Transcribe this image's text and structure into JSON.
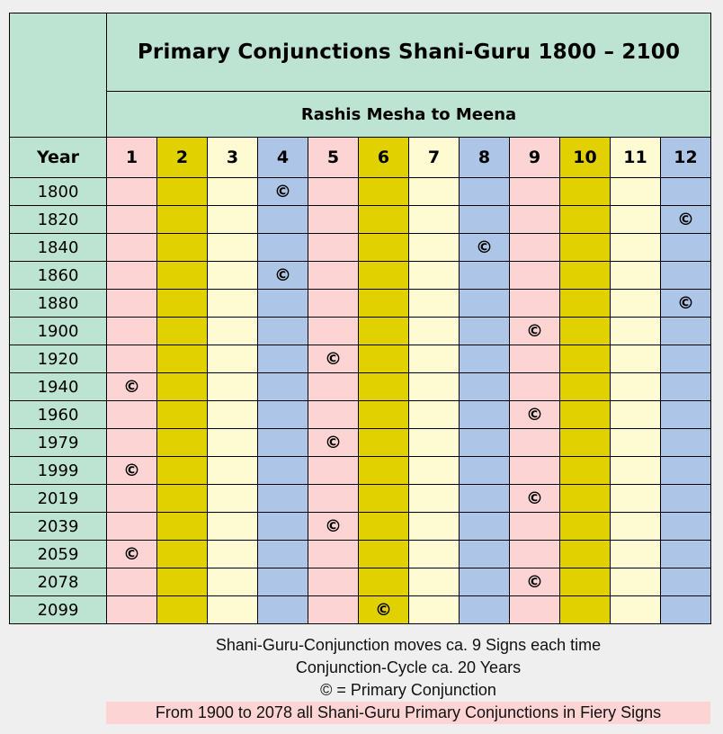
{
  "table": {
    "title": "Primary Conjunctions Shani-Guru 1800 – 2100",
    "subtitle": "Rashis Mesha to Meena",
    "year_header": "Year",
    "sign_headers": [
      "1",
      "2",
      "3",
      "4",
      "5",
      "6",
      "7",
      "8",
      "9",
      "10",
      "11",
      "12"
    ],
    "column_colors": [
      "#fcd4d3",
      "#e2d100",
      "#fefad1",
      "#adc6e7",
      "#fcd4d3",
      "#e2d100",
      "#fefad1",
      "#adc6e7",
      "#fcd4d3",
      "#e2d100",
      "#fefad1",
      "#adc6e7"
    ],
    "header_bg": "#bde3d3",
    "marker_symbol": "©",
    "rows": [
      {
        "year": "1800",
        "sign": 4
      },
      {
        "year": "1820",
        "sign": 12
      },
      {
        "year": "1840",
        "sign": 8
      },
      {
        "year": "1860",
        "sign": 4
      },
      {
        "year": "1880",
        "sign": 12
      },
      {
        "year": "1900",
        "sign": 9
      },
      {
        "year": "1920",
        "sign": 5
      },
      {
        "year": "1940",
        "sign": 1
      },
      {
        "year": "1960",
        "sign": 9
      },
      {
        "year": "1979",
        "sign": 5
      },
      {
        "year": "1999",
        "sign": 1
      },
      {
        "year": "2019",
        "sign": 9
      },
      {
        "year": "2039",
        "sign": 5
      },
      {
        "year": "2059",
        "sign": 1
      },
      {
        "year": "2078",
        "sign": 9
      },
      {
        "year": "2099",
        "sign": 6
      }
    ]
  },
  "notes": {
    "line1": "Shani-Guru-Conjunction moves ca. 9 Signs each time",
    "line2": "Conjunction-Cycle ca. 20 Years",
    "line3": "© = Primary Conjunction",
    "highlight": "From 1900 to 2078 all Shani-Guru Primary Conjunctions in Fiery Signs",
    "highlight_bg": "#fcd4d3"
  }
}
